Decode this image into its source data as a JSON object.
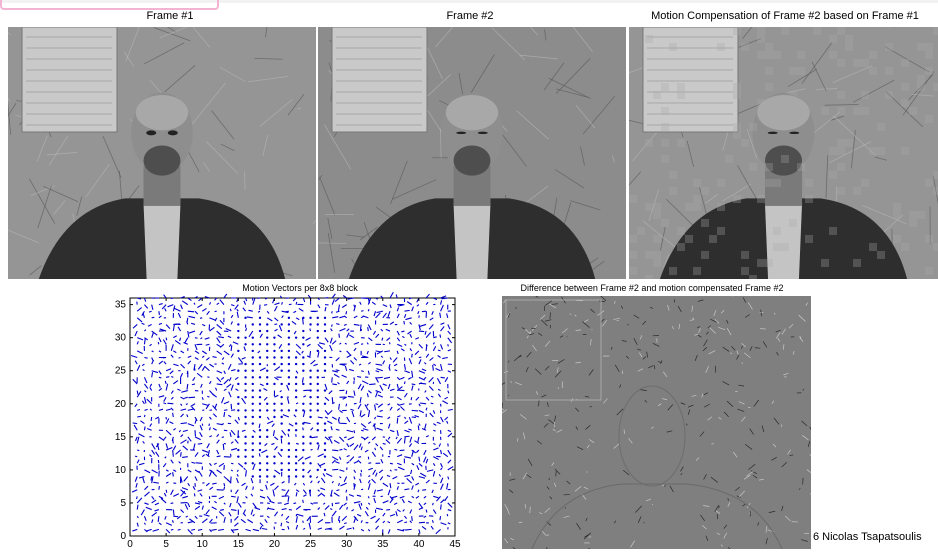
{
  "frames": [
    {
      "id": "frame1",
      "caption": "Frame #1"
    },
    {
      "id": "frame2",
      "caption": "Frame #2"
    },
    {
      "id": "frame3",
      "caption": "Motion Compensation of Frame #2 based on Frame #1"
    }
  ],
  "difference": {
    "caption": "Difference between Frame #2 and motion compensated Frame #2"
  },
  "credit": "6 Nicolas Tsapatsoulis",
  "colors": {
    "vector": "#0000cc",
    "frame_border": "#111111",
    "diff_gray": "#7f7f7f"
  },
  "chart_data": {
    "type": "quiver",
    "title": "Motion Vectors per 8x8 block",
    "xlabel": "",
    "ylabel": "",
    "xlim": [
      0,
      45
    ],
    "ylim": [
      0,
      36
    ],
    "xticks": [
      0,
      5,
      10,
      15,
      20,
      25,
      30,
      35,
      40,
      45
    ],
    "yticks": [
      0,
      5,
      10,
      15,
      20,
      25,
      30,
      35
    ],
    "grid": {
      "cols": 44,
      "rows": 36
    },
    "color": "#0000cc"
  }
}
